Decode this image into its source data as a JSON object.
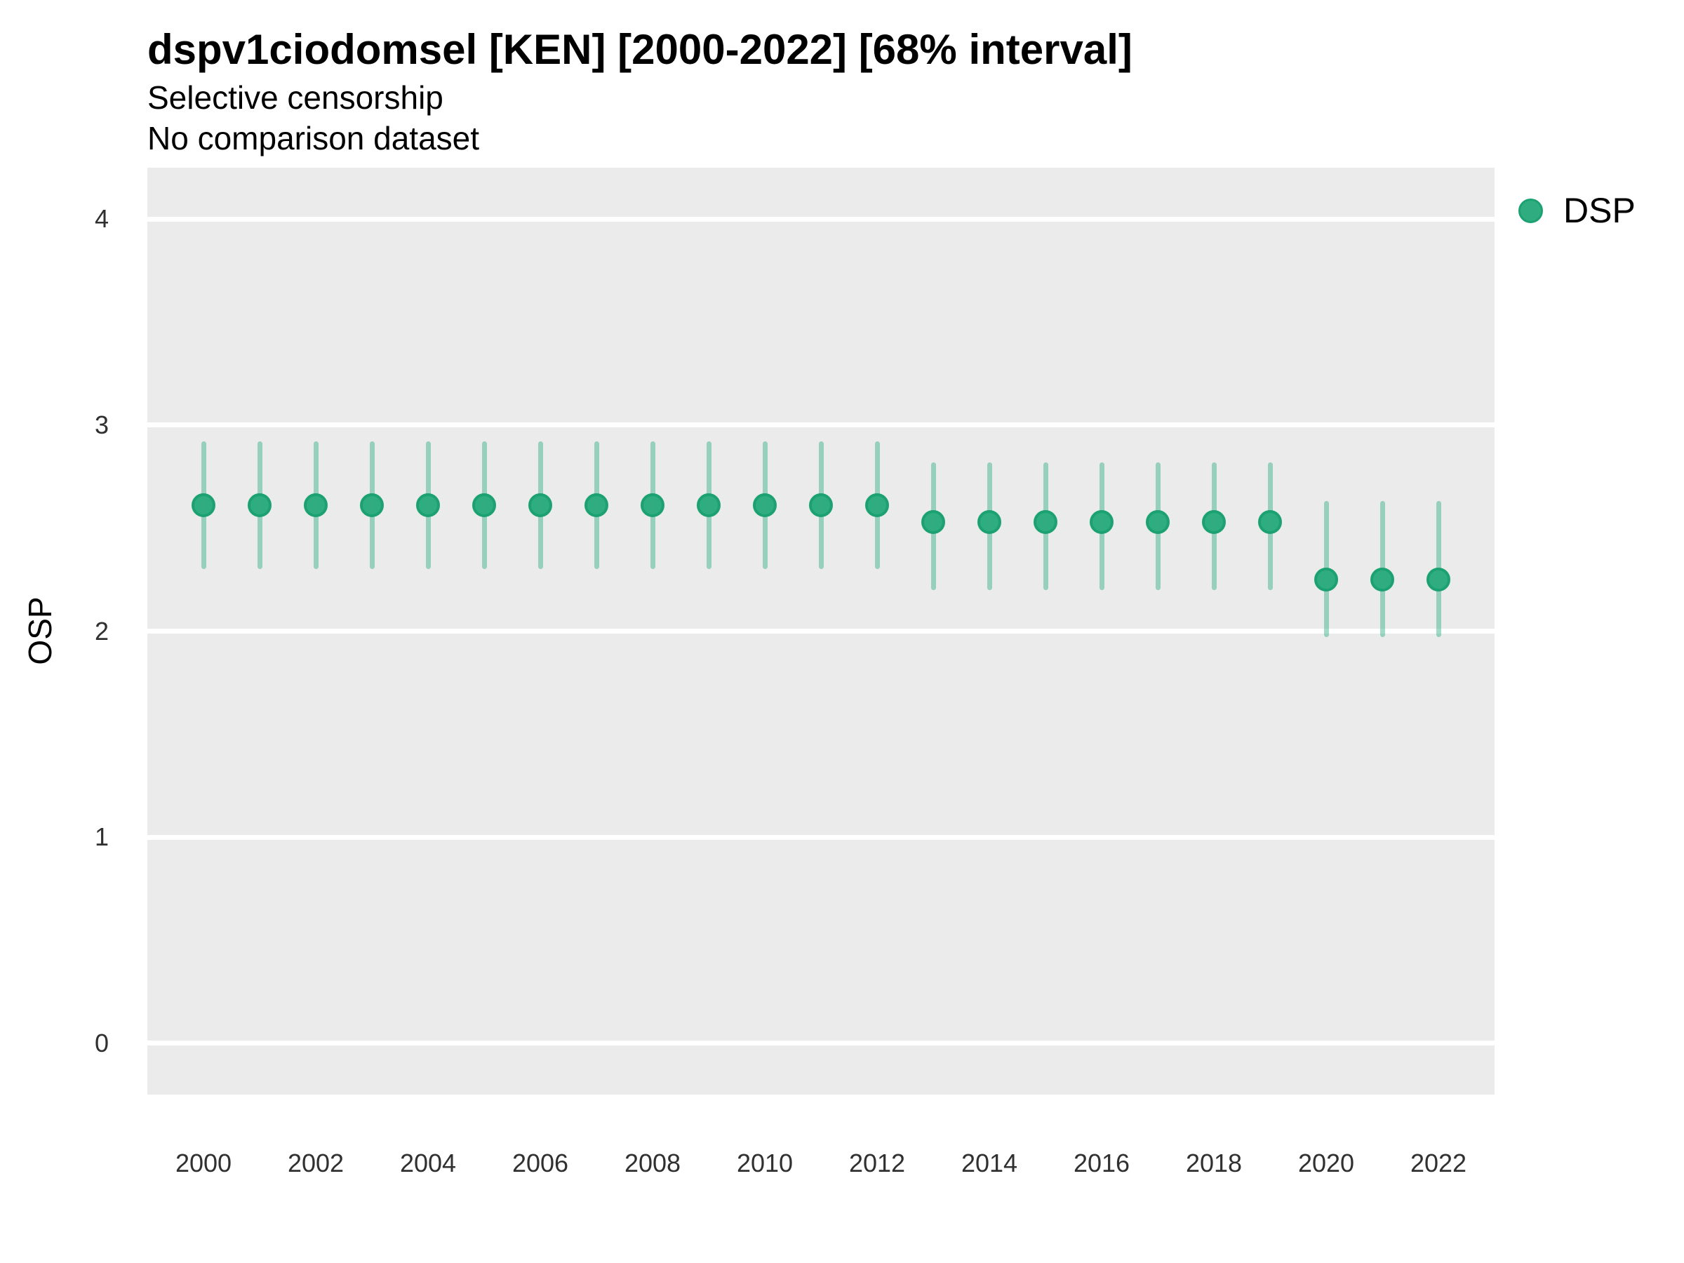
{
  "header": {
    "title": "dspv1ciodomsel [KEN] [2000-2022] [68% interval]",
    "subtitle_line1": "Selective censorship",
    "subtitle_line2": "No comparison dataset"
  },
  "axes": {
    "y_title": "OSP",
    "x_title": ""
  },
  "legend": {
    "position": "right",
    "items": [
      {
        "label": "DSP",
        "color": "#2FAD80",
        "stroke": "#1BA172"
      }
    ]
  },
  "colors": {
    "panel_bg": "#EBEBEB",
    "gridline": "#FFFFFF",
    "point_fill": "#2FAD80",
    "point_stroke": "#1BA172",
    "interval_bar": "rgba(47,173,128,0.45)",
    "tick_text": "#303030",
    "title_text": "#000000"
  },
  "chart_data": {
    "type": "scatter",
    "title": "dspv1ciodomsel [KEN] [2000-2022] [68% interval]",
    "subtitle": [
      "Selective censorship",
      "No comparison dataset"
    ],
    "xlabel": "",
    "ylabel": "OSP",
    "xlim": [
      1999,
      2023
    ],
    "ylim": [
      -0.25,
      4.25
    ],
    "xticks": [
      2000,
      2002,
      2004,
      2006,
      2008,
      2010,
      2012,
      2014,
      2016,
      2018,
      2020,
      2022
    ],
    "yticks": [
      0,
      1,
      2,
      3,
      4
    ],
    "grid": "major horizontal white lines on grey panel",
    "legend_position": "right",
    "interval_level": "68%",
    "series": [
      {
        "name": "DSP",
        "x": [
          2000,
          2001,
          2002,
          2003,
          2004,
          2005,
          2006,
          2007,
          2008,
          2009,
          2010,
          2011,
          2012,
          2013,
          2014,
          2015,
          2016,
          2017,
          2018,
          2019,
          2020,
          2021,
          2022
        ],
        "est": [
          2.61,
          2.61,
          2.61,
          2.61,
          2.61,
          2.61,
          2.61,
          2.61,
          2.61,
          2.61,
          2.61,
          2.61,
          2.61,
          2.53,
          2.53,
          2.53,
          2.53,
          2.53,
          2.53,
          2.53,
          2.25,
          2.25,
          2.25
        ],
        "lower_68": [
          2.31,
          2.31,
          2.31,
          2.31,
          2.31,
          2.31,
          2.31,
          2.31,
          2.31,
          2.31,
          2.31,
          2.31,
          2.31,
          2.21,
          2.21,
          2.21,
          2.21,
          2.21,
          2.21,
          2.21,
          1.98,
          1.98,
          1.98
        ],
        "upper_68": [
          2.91,
          2.91,
          2.91,
          2.91,
          2.91,
          2.91,
          2.91,
          2.91,
          2.91,
          2.91,
          2.91,
          2.91,
          2.91,
          2.81,
          2.81,
          2.81,
          2.81,
          2.81,
          2.81,
          2.81,
          2.62,
          2.62,
          2.62
        ]
      }
    ]
  }
}
